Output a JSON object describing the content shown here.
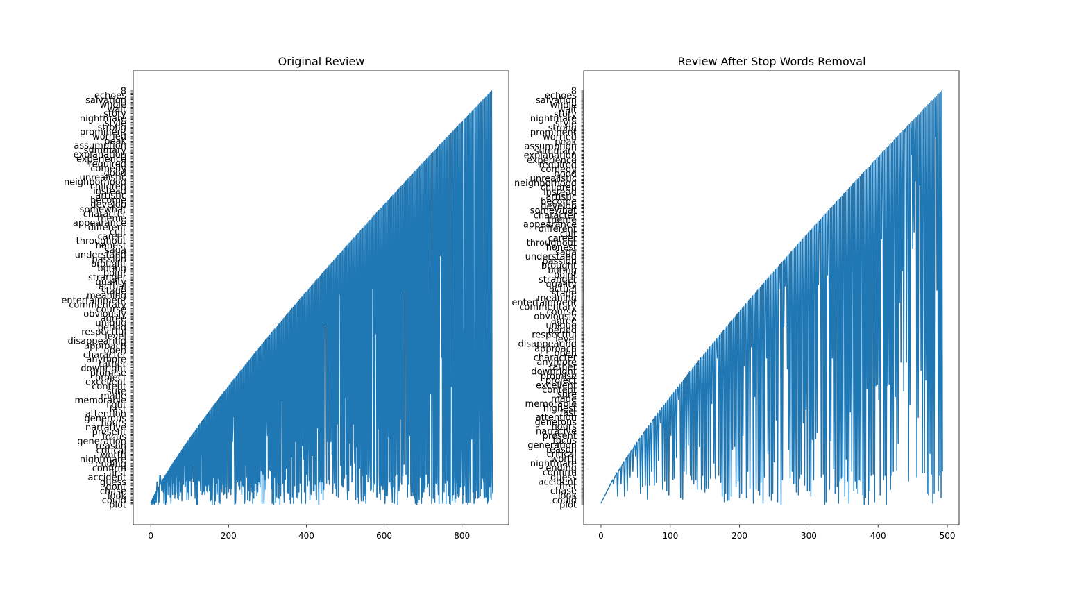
{
  "figure": {
    "background": "#ffffff",
    "line_color": "#1f77b4"
  },
  "chart_data": [
    {
      "type": "line",
      "title": "Original Review",
      "xlabel": "",
      "ylabel": "",
      "xlim": [
        -45,
        920
      ],
      "xticks": [
        0,
        200,
        400,
        600,
        800
      ],
      "n_points": 880,
      "vocab_size": 330,
      "grid": false,
      "legend": "none",
      "y_tick_labels_visible": [
        "plot",
        "could",
        "look",
        "chase",
        "dont",
        "guess",
        "accident",
        "first",
        "confirm",
        "ending",
        "nightmare",
        "worth",
        "critical",
        "reason",
        "generation",
        "focus",
        "present",
        "narrative",
        "hours",
        "generous",
        "attention",
        "fast",
        "light",
        "memorable",
        "made",
        "sure",
        "content",
        "excellent",
        "project",
        "promise",
        "downright",
        "rather",
        "anymore",
        "character",
        "open",
        "approach",
        "disappearing",
        "level",
        "respectful",
        "period",
        "unique",
        "agree",
        "obviously",
        "course",
        "commentary",
        "entertainment",
        "meaning",
        "stage",
        "actual",
        "quality",
        "stranger",
        "point",
        "boring",
        "brought",
        "passion",
        "understand",
        "saga",
        "honest",
        "throughout",
        "career",
        "cult",
        "different",
        "appearance",
        "theme",
        "character",
        "somewhat",
        "develop",
        "become",
        "artistic",
        "instead",
        "children",
        "neighborhood",
        "unrealistic",
        "good",
        "comedy",
        "required",
        "experience",
        "explanation",
        "summary",
        "assumption",
        "peak",
        "worried",
        "prominent",
        "strong",
        "style",
        "nightmare",
        "story",
        "wait",
        "whole",
        "salvation",
        "echoes",
        "8"
      ]
    },
    {
      "type": "line",
      "title": "Review After Stop Words Removal",
      "xlabel": "",
      "ylabel": "",
      "xlim": [
        -25,
        517
      ],
      "xticks": [
        0,
        100,
        200,
        300,
        400,
        500
      ],
      "n_points": 494,
      "vocab_size": 300,
      "grid": false,
      "legend": "none",
      "y_tick_labels_visible": [
        "plot",
        "could",
        "look",
        "chase",
        "first",
        "accident",
        "guess",
        "confirm",
        "ending",
        "nightmare",
        "worth",
        "critical",
        "reason",
        "generation",
        "focus",
        "present",
        "narrative",
        "hours",
        "generous",
        "attention",
        "fast",
        "highest",
        "memorable",
        "made",
        "sure",
        "content",
        "excellent",
        "project",
        "promise",
        "downright",
        "rather",
        "anymore",
        "character",
        "open",
        "approach",
        "disappearing",
        "level",
        "respectful",
        "period",
        "unique",
        "agree",
        "obviously",
        "course",
        "commentary",
        "entertainment",
        "meaning",
        "stage",
        "actual",
        "quality",
        "stranger",
        "point",
        "boring",
        "brought",
        "passion",
        "understand",
        "saga",
        "honest",
        "throughout",
        "career",
        "cult",
        "different",
        "appearance",
        "theme",
        "character",
        "somewhat",
        "develop",
        "become",
        "artistic",
        "instead",
        "children",
        "neighborhood",
        "unrealistic",
        "good",
        "comedy",
        "required",
        "experience",
        "explanation",
        "summary",
        "assumption",
        "peak",
        "worried",
        "prominent",
        "strong",
        "style",
        "nightmare",
        "story",
        "wait",
        "whole",
        "salvation",
        "echoes",
        "8"
      ]
    }
  ]
}
